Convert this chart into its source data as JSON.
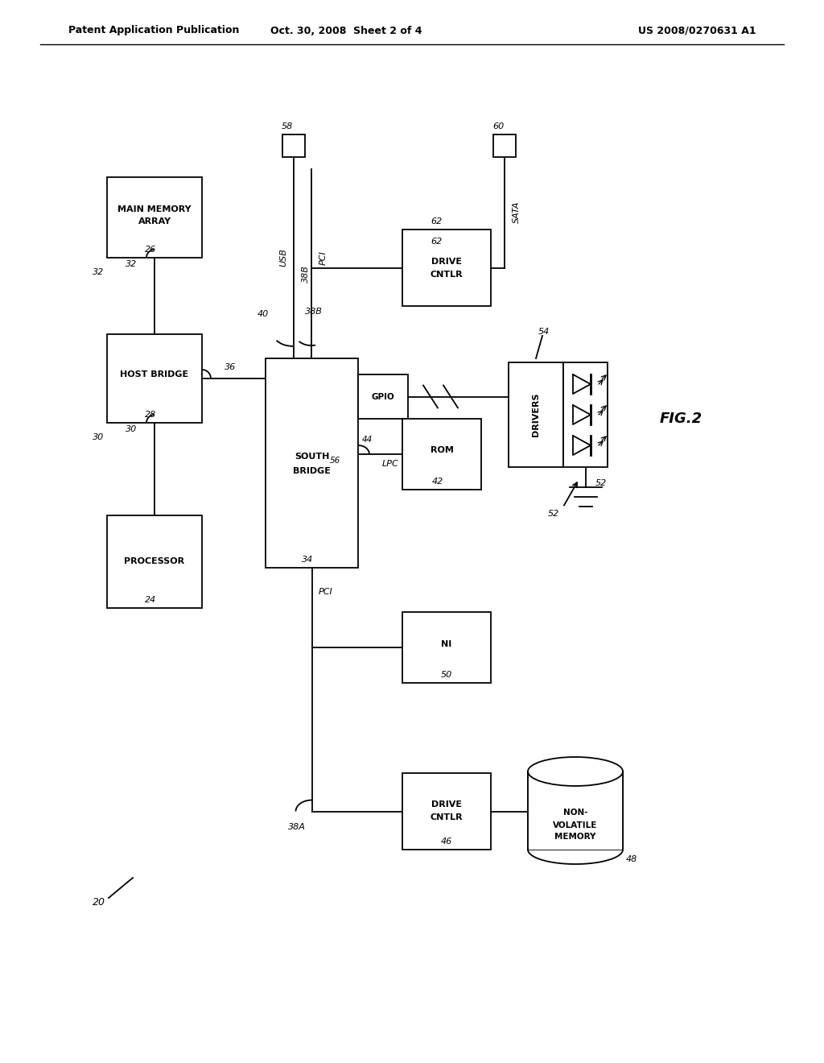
{
  "title_left": "Patent Application Publication",
  "title_center": "Oct. 30, 2008  Sheet 2 of 4",
  "title_right": "US 2008/0270631 A1",
  "bg_color": "#ffffff",
  "line_color": "#000000",
  "fig_label": "FIG.2",
  "diagram_number": "20"
}
